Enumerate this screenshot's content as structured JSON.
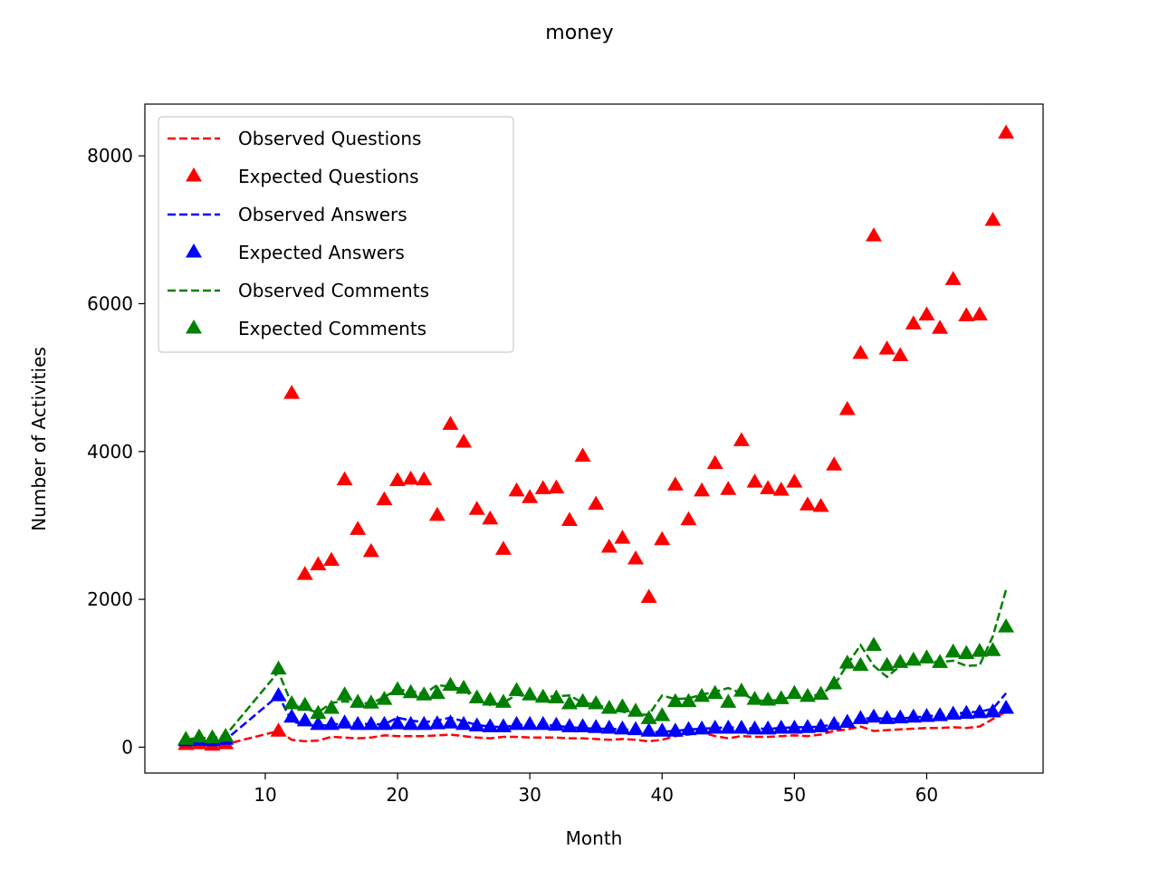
{
  "chart_data": {
    "type": "line",
    "title": "money",
    "xlabel": "Month",
    "ylabel": "Number of Activities",
    "xlim": [
      0.9,
      68.8
    ],
    "ylim": [
      -350,
      8700
    ],
    "xticks": [
      10,
      20,
      30,
      40,
      50,
      60
    ],
    "yticks": [
      0,
      2000,
      4000,
      6000,
      8000
    ],
    "grid": false,
    "legend_position": "top-left",
    "x": [
      4,
      5,
      6,
      7,
      11,
      12,
      13,
      14,
      15,
      16,
      17,
      18,
      19,
      20,
      21,
      22,
      23,
      24,
      25,
      26,
      27,
      28,
      29,
      30,
      31,
      32,
      33,
      34,
      35,
      36,
      37,
      38,
      39,
      40,
      41,
      42,
      43,
      44,
      45,
      46,
      47,
      48,
      49,
      50,
      51,
      52,
      53,
      54,
      55,
      56,
      57,
      58,
      59,
      60,
      61,
      62,
      63,
      64,
      65,
      66
    ],
    "series": [
      {
        "name": "Observed Questions",
        "color": "#ff0000",
        "style": "dashed",
        "values": [
          30,
          40,
          20,
          40,
          220,
          100,
          80,
          90,
          140,
          130,
          120,
          130,
          160,
          150,
          150,
          150,
          160,
          170,
          150,
          130,
          120,
          140,
          140,
          130,
          130,
          130,
          120,
          120,
          110,
          100,
          110,
          100,
          80,
          100,
          150,
          170,
          200,
          150,
          120,
          150,
          140,
          140,
          150,
          160,
          150,
          170,
          220,
          240,
          280,
          220,
          230,
          240,
          250,
          260,
          260,
          270,
          260,
          280,
          380,
          480
        ]
      },
      {
        "name": "Expected Questions",
        "color": "#ff0000",
        "style": "triangle",
        "values": [
          30,
          40,
          20,
          40,
          210,
          4780,
          2330,
          2460,
          2520,
          3610,
          2940,
          2640,
          3340,
          3600,
          3620,
          3610,
          3130,
          4360,
          4120,
          3210,
          3080,
          2670,
          3460,
          3370,
          3490,
          3500,
          3060,
          3930,
          3280,
          2700,
          2820,
          2540,
          2020,
          2800,
          3540,
          3070,
          3460,
          3830,
          3480,
          4140,
          3580,
          3490,
          3470,
          3580,
          3270,
          3250,
          3810,
          4560,
          5320,
          6910,
          5380,
          5290,
          5720,
          5840,
          5660,
          6320,
          5830,
          5840,
          7120,
          8300
        ]
      },
      {
        "name": "Observed Answers",
        "color": "#0000ff",
        "style": "dashed",
        "values": [
          80,
          90,
          80,
          100,
          700,
          350,
          300,
          290,
          300,
          330,
          320,
          310,
          310,
          400,
          360,
          340,
          360,
          400,
          350,
          300,
          280,
          270,
          300,
          300,
          300,
          290,
          270,
          260,
          250,
          250,
          240,
          230,
          200,
          210,
          220,
          240,
          250,
          260,
          270,
          260,
          250,
          250,
          260,
          270,
          270,
          280,
          310,
          340,
          380,
          400,
          380,
          390,
          400,
          420,
          430,
          450,
          470,
          480,
          520,
          730
        ]
      },
      {
        "name": "Expected Answers",
        "color": "#0000ff",
        "style": "triangle",
        "values": [
          80,
          90,
          80,
          100,
          690,
          400,
          350,
          300,
          300,
          320,
          300,
          300,
          300,
          310,
          300,
          300,
          310,
          320,
          300,
          280,
          270,
          270,
          300,
          300,
          300,
          290,
          270,
          270,
          260,
          250,
          240,
          230,
          210,
          210,
          210,
          230,
          240,
          250,
          250,
          250,
          240,
          240,
          250,
          250,
          260,
          270,
          300,
          330,
          380,
          400,
          380,
          390,
          400,
          410,
          420,
          440,
          450,
          460,
          470,
          520
        ]
      },
      {
        "name": "Observed Comments",
        "color": "#008000",
        "style": "dashed",
        "values": [
          100,
          130,
          120,
          160,
          1020,
          580,
          520,
          470,
          600,
          620,
          600,
          590,
          680,
          780,
          760,
          720,
          840,
          820,
          780,
          640,
          570,
          600,
          710,
          680,
          680,
          690,
          700,
          600,
          580,
          520,
          480,
          440,
          440,
          700,
          650,
          660,
          710,
          750,
          800,
          730,
          640,
          620,
          650,
          680,
          680,
          720,
          830,
          1120,
          1380,
          1100,
          950,
          1100,
          1150,
          1170,
          1150,
          1170,
          1100,
          1110,
          1500,
          2130
        ]
      },
      {
        "name": "Expected Comments",
        "color": "#008000",
        "style": "triangle",
        "values": [
          100,
          130,
          120,
          140,
          1050,
          580,
          560,
          450,
          520,
          700,
          600,
          590,
          640,
          770,
          730,
          700,
          720,
          830,
          790,
          660,
          630,
          600,
          760,
          700,
          670,
          660,
          580,
          610,
          580,
          520,
          540,
          480,
          380,
          420,
          610,
          610,
          680,
          720,
          600,
          750,
          640,
          630,
          650,
          720,
          680,
          710,
          850,
          1130,
          1100,
          1370,
          1100,
          1140,
          1170,
          1200,
          1140,
          1280,
          1260,
          1290,
          1300,
          1620
        ]
      }
    ]
  }
}
